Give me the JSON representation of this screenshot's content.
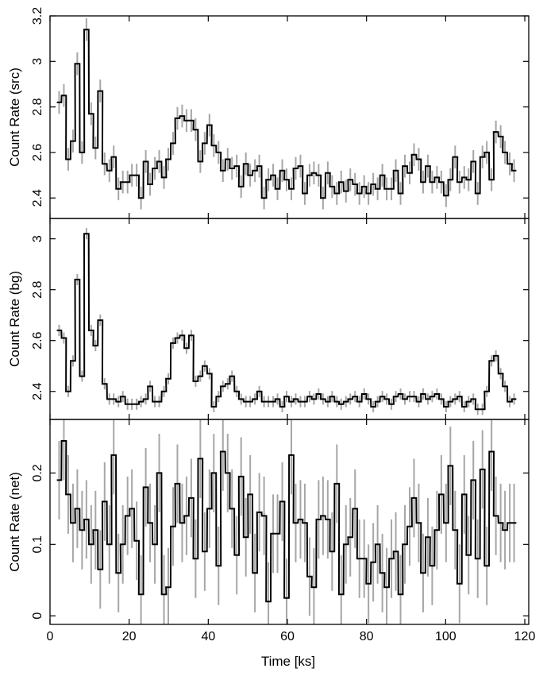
{
  "chart_data": {
    "type": "line",
    "style": "step-with-error-bars",
    "colors": {
      "line": "#000000",
      "error_bars": "#a6a6a6",
      "frame": "#000000"
    },
    "xlabel": "Time [ks]",
    "xlim": [
      0,
      121
    ],
    "xticks": [
      0,
      20,
      40,
      60,
      80,
      100,
      120
    ],
    "bin_width_ks": 1.15,
    "panels": [
      {
        "id": "src",
        "ylabel": "Count Rate (src)",
        "ylim": [
          2.31,
          3.2
        ],
        "yticks": [
          2.4,
          2.6,
          2.8,
          3,
          3.2
        ],
        "ytick_labels": [
          "2.4",
          "2.6",
          "2.8",
          "3",
          "3.2"
        ],
        "error": 0.05,
        "x": [
          2.3,
          3.5,
          4.6,
          5.8,
          6.9,
          8.1,
          9.2,
          10.4,
          11.5,
          12.7,
          13.8,
          15.0,
          16.1,
          17.3,
          18.4,
          19.6,
          20.7,
          21.9,
          23.0,
          24.2,
          25.3,
          26.5,
          27.6,
          28.8,
          29.9,
          31.1,
          32.2,
          33.4,
          34.5,
          35.7,
          36.8,
          38.0,
          39.1,
          40.3,
          41.4,
          42.6,
          43.7,
          44.9,
          46.0,
          47.2,
          48.3,
          49.5,
          50.6,
          51.8,
          52.9,
          54.1,
          55.2,
          56.4,
          57.5,
          58.7,
          59.8,
          61.0,
          62.1,
          63.3,
          64.4,
          65.6,
          66.7,
          67.9,
          69.0,
          70.2,
          71.3,
          72.5,
          73.6,
          74.8,
          75.9,
          77.1,
          78.2,
          79.4,
          80.5,
          81.7,
          82.8,
          84.0,
          85.1,
          86.3,
          87.4,
          88.6,
          89.7,
          90.9,
          92.0,
          93.2,
          94.3,
          95.5,
          96.6,
          97.8,
          98.9,
          100.1,
          101.2,
          102.4,
          103.5,
          104.7,
          105.8,
          107.0,
          108.1,
          109.3,
          110.4,
          111.6,
          112.7,
          113.9,
          115.0,
          116.2,
          117.3
        ],
        "y": [
          2.82,
          2.85,
          2.57,
          2.65,
          2.99,
          2.6,
          3.14,
          2.77,
          2.62,
          2.87,
          2.55,
          2.52,
          2.58,
          2.44,
          2.47,
          2.47,
          2.5,
          2.5,
          2.4,
          2.56,
          2.46,
          2.53,
          2.56,
          2.49,
          2.57,
          2.64,
          2.75,
          2.76,
          2.74,
          2.74,
          2.7,
          2.56,
          2.64,
          2.72,
          2.63,
          2.6,
          2.52,
          2.57,
          2.53,
          2.54,
          2.45,
          2.55,
          2.5,
          2.52,
          2.54,
          2.4,
          2.48,
          2.5,
          2.44,
          2.52,
          2.48,
          2.44,
          2.53,
          2.54,
          2.42,
          2.5,
          2.51,
          2.5,
          2.4,
          2.51,
          2.45,
          2.42,
          2.47,
          2.43,
          2.48,
          2.46,
          2.42,
          2.45,
          2.42,
          2.46,
          2.44,
          2.5,
          2.44,
          2.44,
          2.52,
          2.42,
          2.54,
          2.51,
          2.59,
          2.57,
          2.47,
          2.54,
          2.47,
          2.49,
          2.47,
          2.41,
          2.48,
          2.58,
          2.47,
          2.49,
          2.48,
          2.56,
          2.42,
          2.58,
          2.6,
          2.48,
          2.69,
          2.67,
          2.6,
          2.55,
          2.52
        ]
      },
      {
        "id": "bg",
        "ylabel": "Count Rate (bg)",
        "ylim": [
          2.29,
          3.08
        ],
        "yticks": [
          2.4,
          2.6,
          2.8,
          3
        ],
        "ytick_labels": [
          "2.4",
          "2.6",
          "2.8",
          "3"
        ],
        "error": 0.022,
        "x": [
          2.3,
          3.5,
          4.6,
          5.8,
          6.9,
          8.1,
          9.2,
          10.4,
          11.5,
          12.7,
          13.8,
          15.0,
          16.1,
          17.3,
          18.4,
          19.6,
          20.7,
          21.9,
          23.0,
          24.2,
          25.3,
          26.5,
          27.6,
          28.8,
          29.9,
          31.1,
          32.2,
          33.4,
          34.5,
          35.7,
          36.8,
          38.0,
          39.1,
          40.3,
          41.4,
          42.6,
          43.7,
          44.9,
          46.0,
          47.2,
          48.3,
          49.5,
          50.6,
          51.8,
          52.9,
          54.1,
          55.2,
          56.4,
          57.5,
          58.7,
          59.8,
          61.0,
          62.1,
          63.3,
          64.4,
          65.6,
          66.7,
          67.9,
          69.0,
          70.2,
          71.3,
          72.5,
          73.6,
          74.8,
          75.9,
          77.1,
          78.2,
          79.4,
          80.5,
          81.7,
          82.8,
          84.0,
          85.1,
          86.3,
          87.4,
          88.6,
          89.7,
          90.9,
          92.0,
          93.2,
          94.3,
          95.5,
          96.6,
          97.8,
          98.9,
          100.1,
          101.2,
          102.4,
          103.5,
          104.7,
          105.8,
          107.0,
          108.1,
          109.3,
          110.4,
          111.6,
          112.7,
          113.9,
          115.0,
          116.2,
          117.3
        ],
        "y": [
          2.64,
          2.61,
          2.4,
          2.52,
          2.84,
          2.46,
          3.02,
          2.64,
          2.58,
          2.68,
          2.43,
          2.37,
          2.37,
          2.36,
          2.38,
          2.35,
          2.35,
          2.35,
          2.36,
          2.37,
          2.42,
          2.36,
          2.36,
          2.4,
          2.45,
          2.59,
          2.61,
          2.62,
          2.57,
          2.62,
          2.44,
          2.46,
          2.5,
          2.47,
          2.34,
          2.38,
          2.42,
          2.43,
          2.46,
          2.4,
          2.37,
          2.36,
          2.36,
          2.37,
          2.4,
          2.36,
          2.36,
          2.36,
          2.37,
          2.34,
          2.38,
          2.36,
          2.37,
          2.36,
          2.36,
          2.38,
          2.37,
          2.39,
          2.37,
          2.36,
          2.38,
          2.36,
          2.35,
          2.36,
          2.37,
          2.38,
          2.36,
          2.39,
          2.37,
          2.34,
          2.36,
          2.38,
          2.37,
          2.35,
          2.38,
          2.39,
          2.37,
          2.38,
          2.38,
          2.36,
          2.39,
          2.37,
          2.38,
          2.39,
          2.37,
          2.34,
          2.36,
          2.37,
          2.38,
          2.34,
          2.36,
          2.37,
          2.33,
          2.33,
          2.4,
          2.52,
          2.54,
          2.47,
          2.42,
          2.36,
          2.37
        ]
      },
      {
        "id": "net",
        "ylabel": "Count Rate (net)",
        "ylim": [
          -0.012,
          0.275
        ],
        "yticks": [
          0,
          0.1,
          0.2
        ],
        "ytick_labels": [
          "0",
          "0.1",
          "0.2"
        ],
        "error": 0.055,
        "x": [
          2.3,
          3.5,
          4.6,
          5.8,
          6.9,
          8.1,
          9.2,
          10.4,
          11.5,
          12.7,
          13.8,
          15.0,
          16.1,
          17.3,
          18.4,
          19.6,
          20.7,
          21.9,
          23.0,
          24.2,
          25.3,
          26.5,
          27.6,
          28.8,
          29.9,
          31.1,
          32.2,
          33.4,
          34.5,
          35.7,
          36.8,
          38.0,
          39.1,
          40.3,
          41.4,
          42.6,
          43.7,
          44.9,
          46.0,
          47.2,
          48.3,
          49.5,
          50.6,
          51.8,
          52.9,
          54.1,
          55.2,
          56.4,
          57.5,
          58.7,
          59.8,
          61.0,
          62.1,
          63.3,
          64.4,
          65.6,
          66.7,
          67.9,
          69.0,
          70.2,
          71.3,
          72.5,
          73.6,
          74.8,
          75.9,
          77.1,
          78.2,
          79.4,
          80.5,
          81.7,
          82.8,
          84.0,
          85.1,
          86.3,
          87.4,
          88.6,
          89.7,
          90.9,
          92.0,
          93.2,
          94.3,
          95.5,
          96.6,
          97.8,
          98.9,
          100.1,
          101.2,
          102.4,
          103.5,
          104.7,
          105.8,
          107.0,
          108.1,
          109.3,
          110.4,
          111.6,
          112.7,
          113.9,
          115.0,
          116.2,
          117.3
        ],
        "y": [
          0.19,
          0.245,
          0.17,
          0.13,
          0.15,
          0.12,
          0.135,
          0.1,
          0.12,
          0.065,
          0.16,
          0.1,
          0.225,
          0.06,
          0.1,
          0.14,
          0.15,
          0.105,
          0.03,
          0.18,
          0.13,
          0.1,
          0.2,
          0.03,
          0.04,
          0.125,
          0.185,
          0.13,
          0.14,
          0.165,
          0.08,
          0.22,
          0.09,
          0.15,
          0.2,
          0.07,
          0.23,
          0.2,
          0.15,
          0.085,
          0.195,
          0.11,
          0.17,
          0.06,
          0.145,
          0.14,
          0.02,
          0.115,
          0.115,
          0.16,
          0.025,
          0.225,
          0.13,
          0.135,
          0.13,
          0.055,
          0.04,
          0.135,
          0.14,
          0.135,
          0.09,
          0.185,
          0.03,
          0.1,
          0.11,
          0.15,
          0.08,
          0.08,
          0.045,
          0.075,
          0.1,
          0.06,
          0.04,
          0.08,
          0.09,
          0.03,
          0.1,
          0.125,
          0.165,
          0.13,
          0.06,
          0.11,
          0.07,
          0.12,
          0.17,
          0.13,
          0.21,
          0.12,
          0.045,
          0.17,
          0.085,
          0.19,
          0.08,
          0.205,
          0.07,
          0.23,
          0.14,
          0.13,
          0.12,
          0.13,
          0.13
        ]
      }
    ],
    "xtick_labels": [
      "0",
      "20",
      "40",
      "60",
      "80",
      "100",
      "120"
    ]
  }
}
